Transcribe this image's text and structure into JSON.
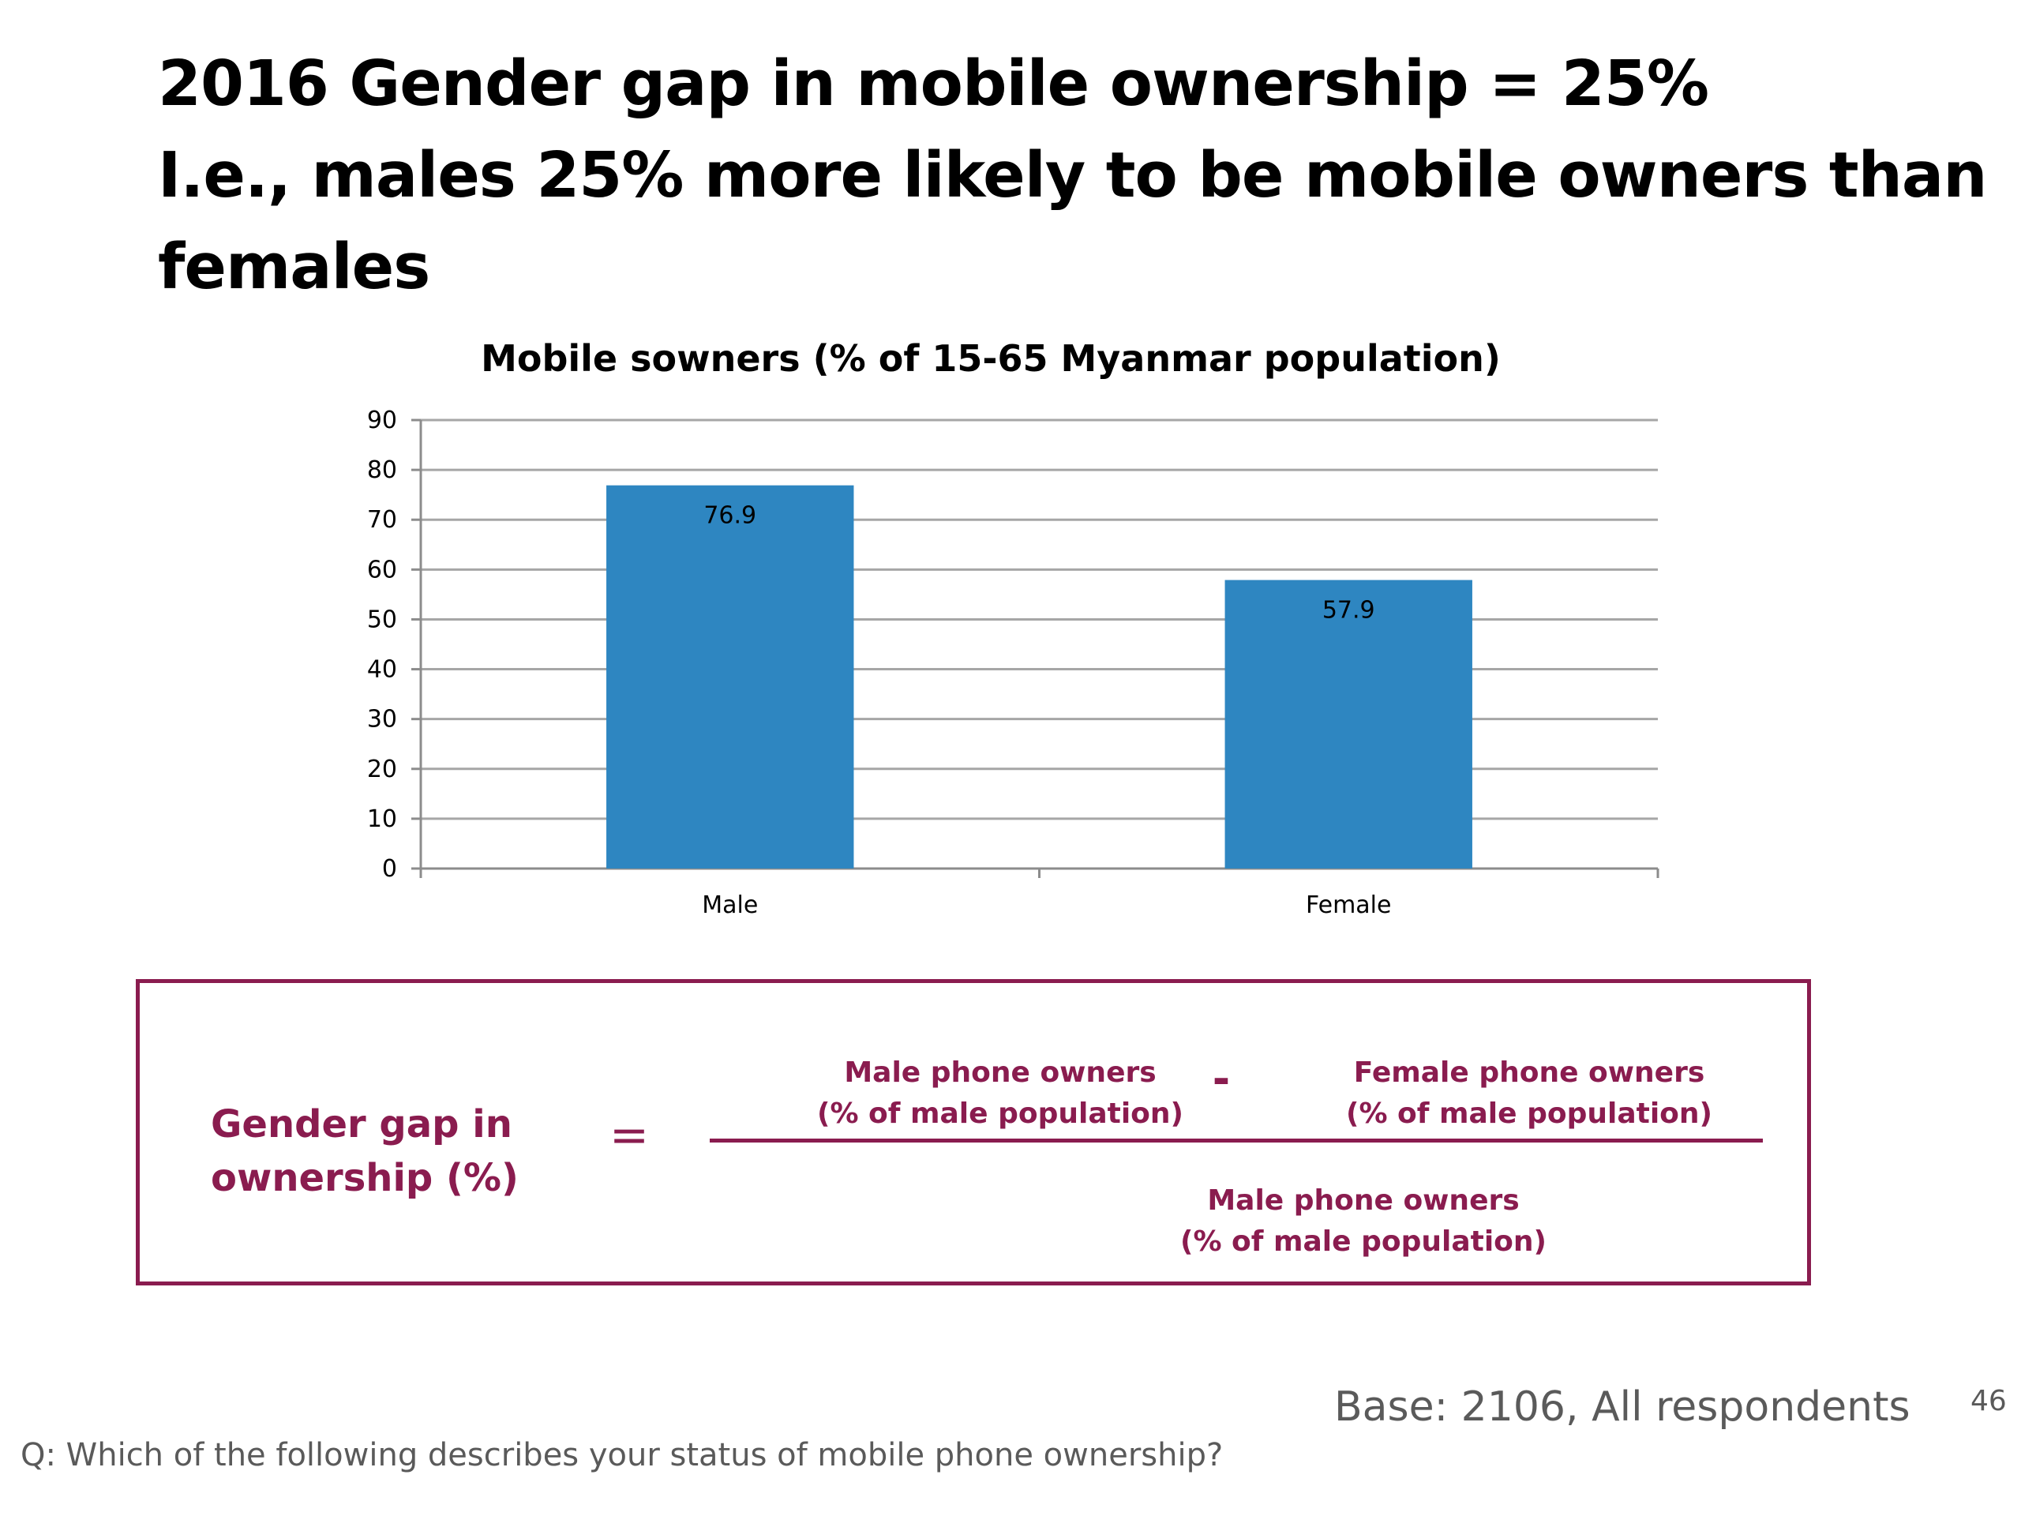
{
  "slide": {
    "title_lines": [
      "2016 Gender gap in mobile ownership = 25%",
      "I.e., males 25% more likely to be mobile owners than",
      "females"
    ],
    "page_number": "46",
    "base_note": "Base: 2106, All respondents",
    "question_note": "Q: Which of the following describes your status of mobile phone ownership?"
  },
  "formula": {
    "lhs_lines": [
      "Gender gap in",
      "ownership (%)"
    ],
    "equals": "=",
    "minus": "-",
    "numerator_left": [
      "Male phone owners",
      "(% of male population)"
    ],
    "numerator_right": [
      "Female phone owners",
      "(% of male population)"
    ],
    "denominator": [
      "Male phone owners",
      "(% of male population)"
    ],
    "color": "#8a1c4f"
  },
  "chart_data": {
    "type": "bar",
    "title": "Mobile sowners (% of 15-65 Myanmar population)",
    "categories": [
      "Male",
      "Female"
    ],
    "values": [
      76.9,
      57.9
    ],
    "value_labels": [
      "76.9",
      "57.9"
    ],
    "xlabel": "",
    "ylabel": "",
    "ylim": [
      0,
      90
    ],
    "yticks": [
      0,
      10,
      20,
      30,
      40,
      50,
      60,
      70,
      80,
      90
    ],
    "ytick_labels": [
      "0",
      "10",
      "20",
      "30",
      "40",
      "50",
      "60",
      "70",
      "80",
      "90"
    ],
    "grid": true,
    "legend": "none",
    "bar_color": "#2e86c1"
  }
}
